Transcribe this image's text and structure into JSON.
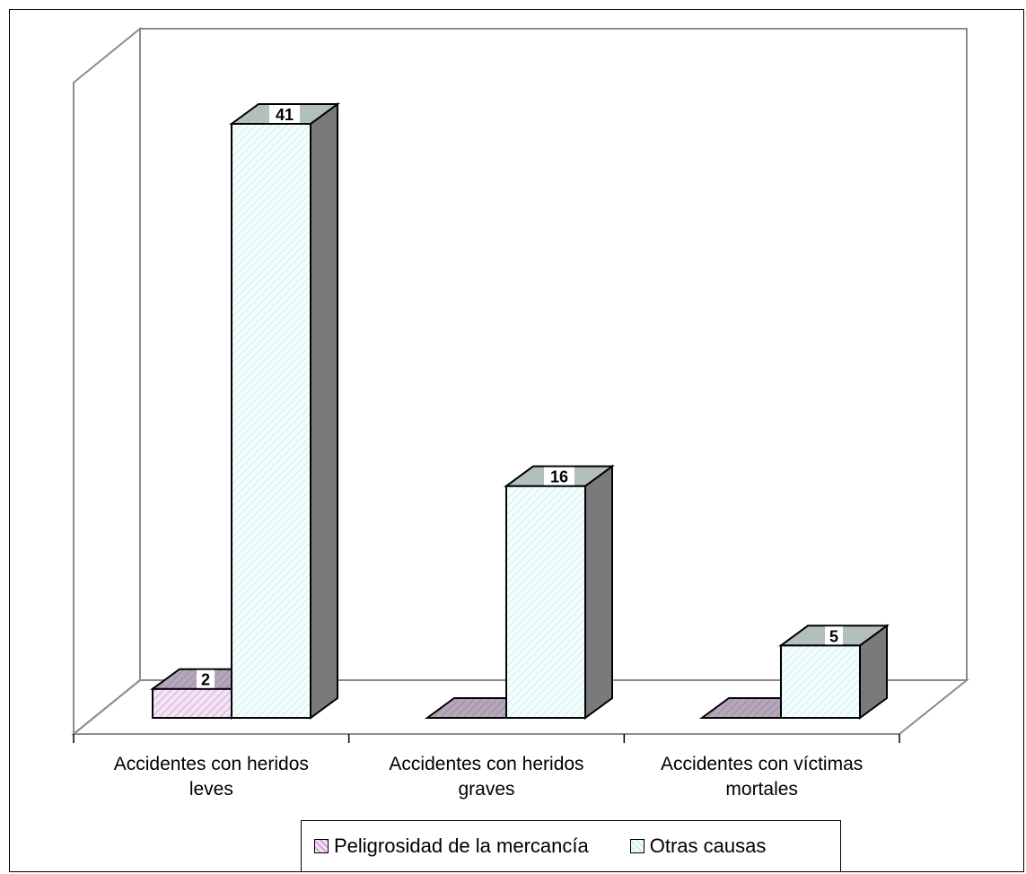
{
  "chart_data": {
    "type": "bar",
    "style": "3d-clustered",
    "categories": [
      "Accidentes con heridos leves",
      "Accidentes con heridos graves",
      "Accidentes con víctimas mortales"
    ],
    "category_lines": [
      [
        "Accidentes con heridos",
        "leves"
      ],
      [
        "Accidentes con heridos",
        "graves"
      ],
      [
        "Accidentes con víctimas",
        "mortales"
      ]
    ],
    "series": [
      {
        "name": "Peligrosidad de la mercancía",
        "values": [
          2,
          0,
          0
        ],
        "labels": [
          "2",
          "",
          ""
        ],
        "color": "#e8d6ee",
        "side_color": "#7a7a7a",
        "top_color": "#b6a6b9"
      },
      {
        "name": "Otras causas",
        "values": [
          41,
          16,
          5
        ],
        "labels": [
          "41",
          "16",
          "5"
        ],
        "color": "#ecfbfb",
        "side_color": "#7a7a7a",
        "top_color": "#b3bfbd"
      }
    ],
    "ylim": [
      0,
      41
    ],
    "grid": false,
    "legend_position": "bottom"
  }
}
